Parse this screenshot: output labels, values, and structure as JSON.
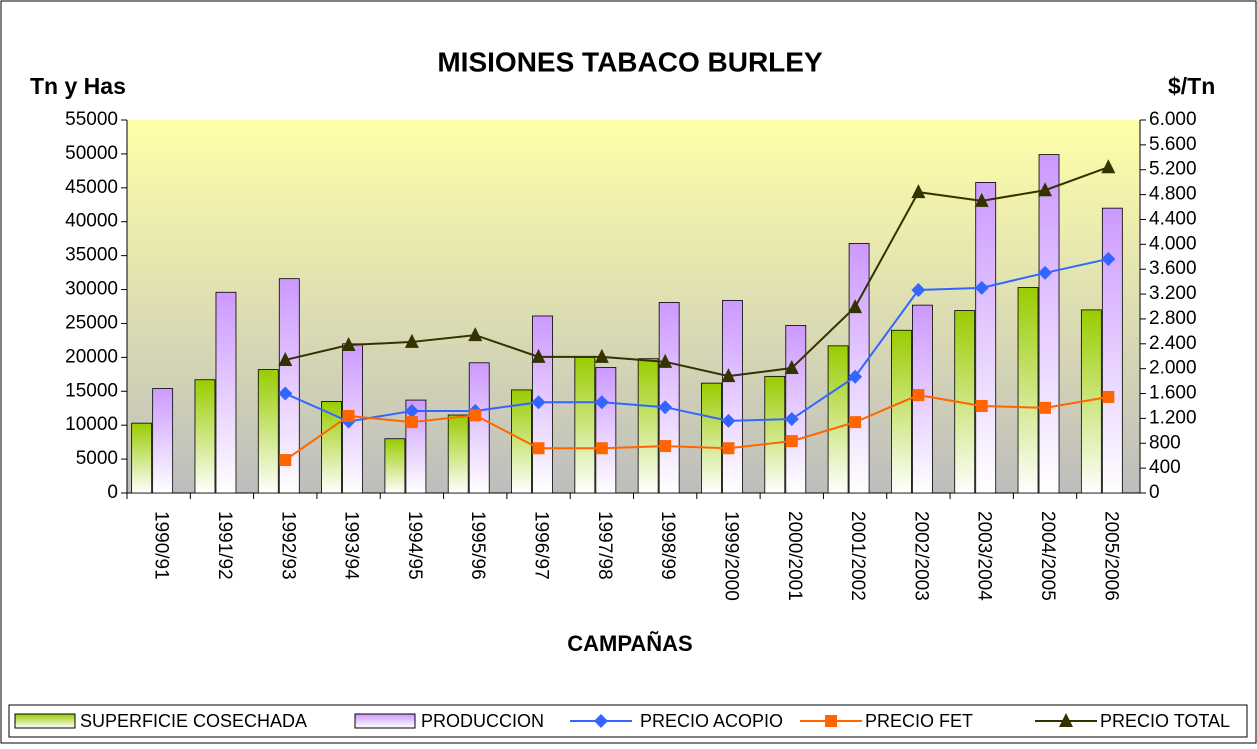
{
  "chart_data": {
    "type": "bar",
    "title": "MISIONES TABACO BURLEY",
    "xlabel": "CAMPAÑAS",
    "ylabel": "Tn y Has",
    "y2label": "$/Tn",
    "categories": [
      "1990/91",
      "1991/92",
      "1992/93",
      "1993/94",
      "1994/95",
      "1995/96",
      "1996/97",
      "1997/98",
      "1998/99",
      "1999/2000",
      "2000/2001",
      "2001/2002",
      "2002/2003",
      "2003/2004",
      "2004/2005",
      "2005/2006"
    ],
    "series": [
      {
        "name": "SUPERFICIE COSECHADA",
        "type": "bar",
        "color": "#99cc00",
        "values": [
          10300,
          16700,
          18200,
          13500,
          8000,
          11500,
          15200,
          20000,
          19800,
          16200,
          17200,
          21700,
          24000,
          26900,
          30300,
          27000
        ]
      },
      {
        "name": "PRODUCCION",
        "type": "bar",
        "color": "#cc99ff",
        "values": [
          15400,
          29600,
          31600,
          22000,
          13700,
          19200,
          26100,
          18500,
          28100,
          28400,
          24700,
          36800,
          27700,
          45800,
          49900,
          42000
        ]
      },
      {
        "name": "PRECIO ACOPIO",
        "type": "line",
        "axis": "y2",
        "marker": "diamond",
        "color": "#3366ff",
        "values": [
          null,
          null,
          1600,
          1150,
          1320,
          1320,
          1460,
          1460,
          1380,
          1160,
          1190,
          1870,
          3265,
          3300,
          3540,
          3765
        ]
      },
      {
        "name": "PRECIO FET",
        "type": "line",
        "axis": "y2",
        "marker": "square",
        "color": "#ff6600",
        "values": [
          null,
          null,
          530,
          1240,
          1140,
          1250,
          720,
          720,
          755,
          720,
          835,
          1140,
          1575,
          1400,
          1370,
          1545
        ]
      },
      {
        "name": "PRECIO TOTAL",
        "type": "line",
        "axis": "y2",
        "marker": "triangle",
        "color": "#333300",
        "values": [
          null,
          null,
          2140,
          2380,
          2430,
          2540,
          2190,
          2190,
          2110,
          1880,
          2010,
          2990,
          4840,
          4700,
          4870,
          5240
        ]
      }
    ],
    "ylim": [
      0,
      55000
    ],
    "yticks": [
      0,
      5000,
      10000,
      15000,
      20000,
      25000,
      30000,
      35000,
      40000,
      45000,
      50000,
      55000
    ],
    "y2lim": [
      0,
      6000
    ],
    "y2ticks": [
      0,
      400,
      800,
      {
        "value": 1200,
        "label": "1.200"
      },
      {
        "value": 1600,
        "label": "1.600"
      },
      {
        "value": 2000,
        "label": "2.000"
      },
      {
        "value": 2400,
        "label": "2.400"
      },
      {
        "value": 2800,
        "label": "2.800"
      },
      {
        "value": 3200,
        "label": "3.200"
      },
      {
        "value": 3600,
        "label": "3.600"
      },
      {
        "value": 4000,
        "label": "4.000"
      },
      {
        "value": 4400,
        "label": "4.400"
      },
      {
        "value": 4800,
        "label": "4.800"
      },
      {
        "value": 5200,
        "label": "5.200"
      },
      {
        "value": 5600,
        "label": "5.600"
      },
      {
        "value": 6000,
        "label": "6.000"
      }
    ],
    "legend": "bottom"
  }
}
